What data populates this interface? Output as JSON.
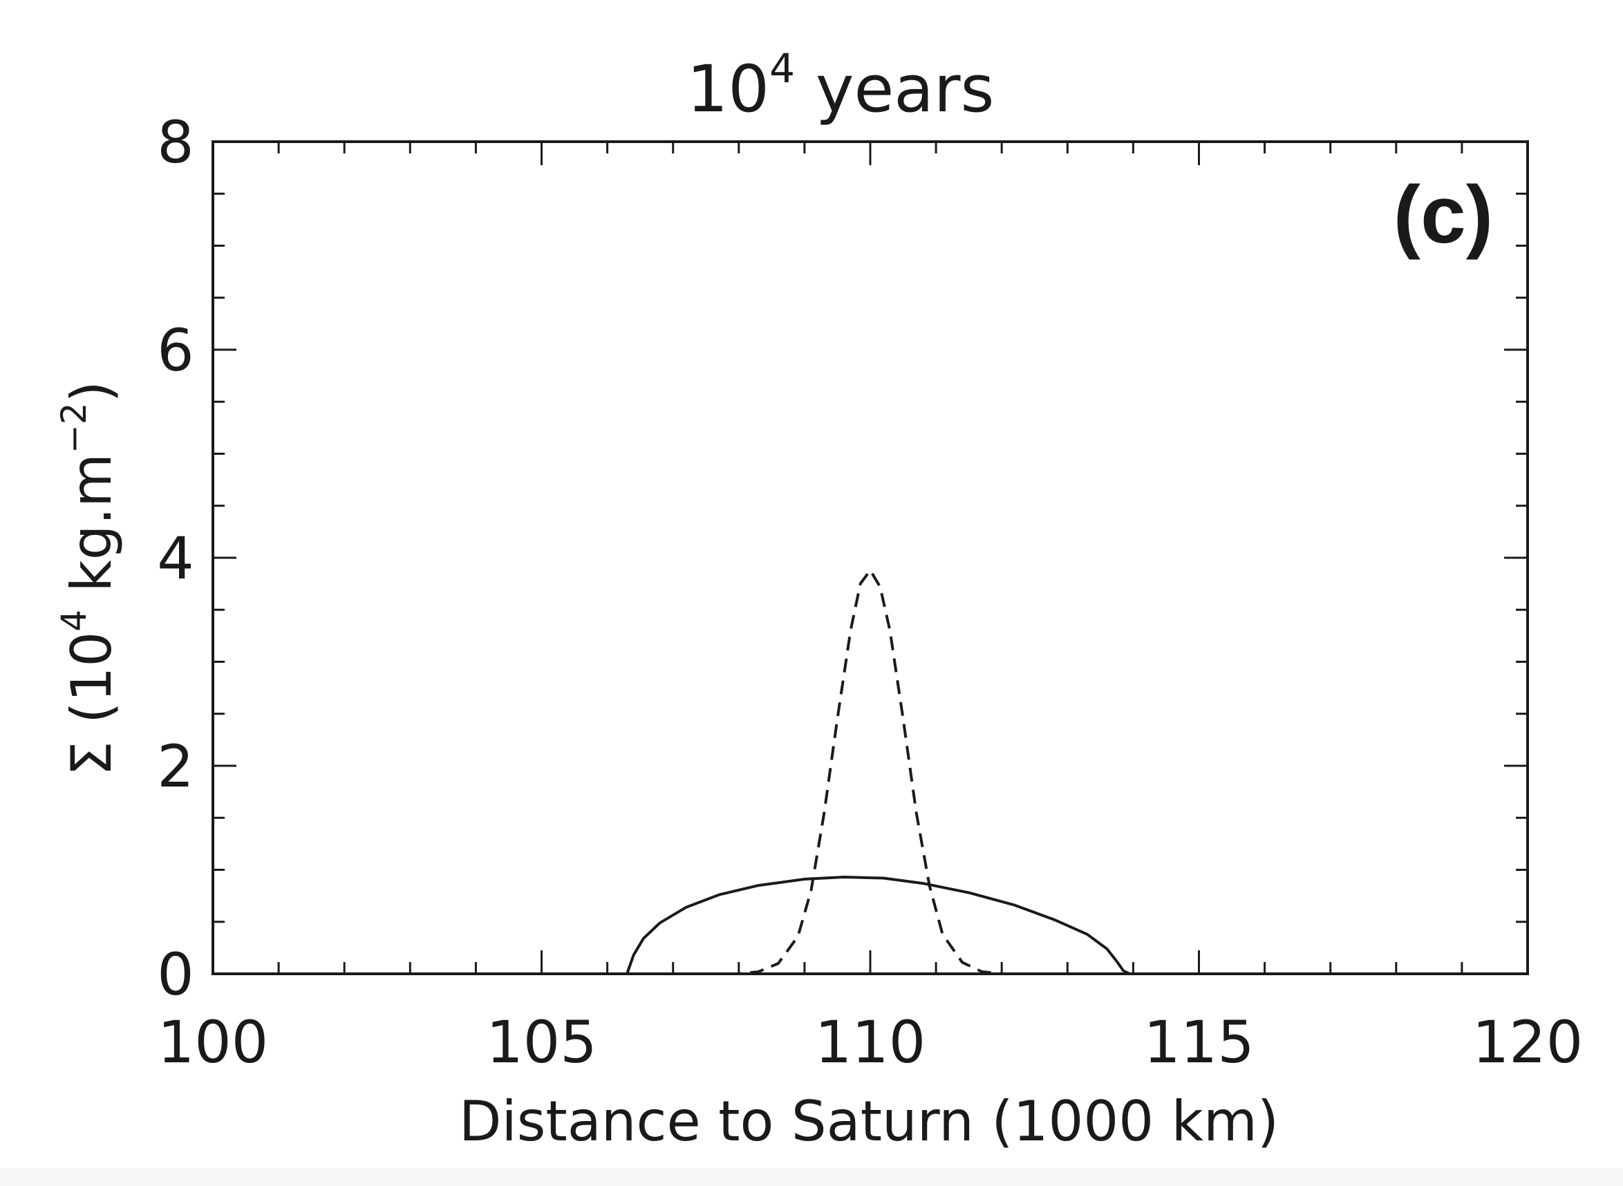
{
  "chart_data": {
    "type": "line",
    "title_base": "10",
    "title_exp": "4",
    "title_rest": " years",
    "panel_label": "(c)",
    "xlabel": "Distance to Saturn (1000 km)",
    "ylabel": {
      "prefix": "Σ (10",
      "exp1": "4",
      "mid": " kg.m",
      "exp2": "−2",
      "suffix": ")"
    },
    "xlim": [
      100,
      120
    ],
    "ylim": [
      0,
      8
    ],
    "x_ticks": [
      100,
      105,
      110,
      115,
      120
    ],
    "y_ticks": [
      0,
      2,
      4,
      6,
      8
    ],
    "x_minor_step": 1,
    "y_minor_step": 0.5,
    "grid": false,
    "series": [
      {
        "style": "solid",
        "x": [
          105.0,
          106.3,
          106.4,
          106.55,
          106.8,
          107.2,
          107.7,
          108.3,
          109.0,
          109.6,
          110.2,
          110.8,
          111.5,
          112.2,
          112.8,
          113.3,
          113.6,
          113.75,
          113.85,
          113.95,
          115.0
        ],
        "y": [
          0.0,
          0.0,
          0.18,
          0.34,
          0.49,
          0.64,
          0.76,
          0.85,
          0.91,
          0.93,
          0.92,
          0.87,
          0.78,
          0.66,
          0.52,
          0.38,
          0.24,
          0.12,
          0.03,
          0.0,
          0.0
        ]
      },
      {
        "style": "dashed",
        "x": [
          107.5,
          108.0,
          108.3,
          108.6,
          108.9,
          109.1,
          109.3,
          109.5,
          109.7,
          109.85,
          110.0,
          110.15,
          110.3,
          110.5,
          110.7,
          110.9,
          111.1,
          111.4,
          111.7,
          112.0,
          112.5
        ],
        "y": [
          0.0,
          0.0,
          0.02,
          0.1,
          0.36,
          0.8,
          1.55,
          2.45,
          3.3,
          3.75,
          3.88,
          3.72,
          3.3,
          2.45,
          1.55,
          0.85,
          0.38,
          0.11,
          0.02,
          0.0,
          0.0
        ]
      }
    ]
  }
}
